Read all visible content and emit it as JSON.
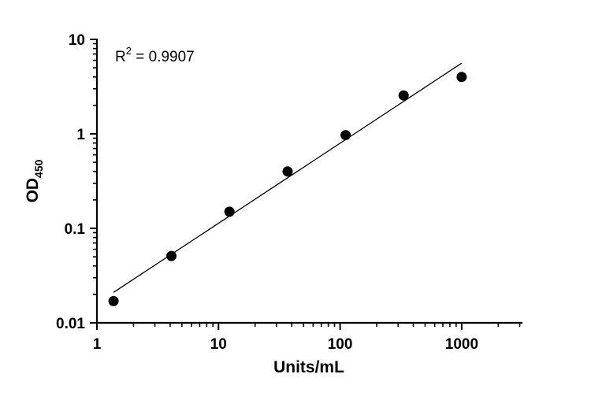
{
  "chart_data": {
    "type": "scatter",
    "xlabel": "Units/mL",
    "ylabel": "OD",
    "ylabel_subscript": "450",
    "xscale": "log",
    "yscale": "log",
    "xlim": [
      1,
      3000
    ],
    "ylim": [
      0.01,
      10
    ],
    "x_ticks": [
      1,
      10,
      100,
      1000
    ],
    "x_tick_labels": [
      "1",
      "10",
      "100",
      "1000"
    ],
    "y_ticks": [
      0.01,
      0.1,
      1,
      10
    ],
    "y_tick_labels": [
      "0.01",
      "0.1",
      "1",
      "10"
    ],
    "grid": false,
    "points": [
      {
        "x": 1.37,
        "y": 0.017
      },
      {
        "x": 4.1,
        "y": 0.051
      },
      {
        "x": 12.3,
        "y": 0.15
      },
      {
        "x": 37,
        "y": 0.4
      },
      {
        "x": 111,
        "y": 0.97
      },
      {
        "x": 333,
        "y": 2.55
      },
      {
        "x": 1000,
        "y": 4.0
      }
    ],
    "fit_line": {
      "x": [
        1.37,
        1000
      ],
      "y": [
        0.021,
        5.6
      ]
    },
    "annotation": {
      "text_main": "R",
      "superscript": "2",
      "text_rest": " =  0.9907"
    }
  }
}
